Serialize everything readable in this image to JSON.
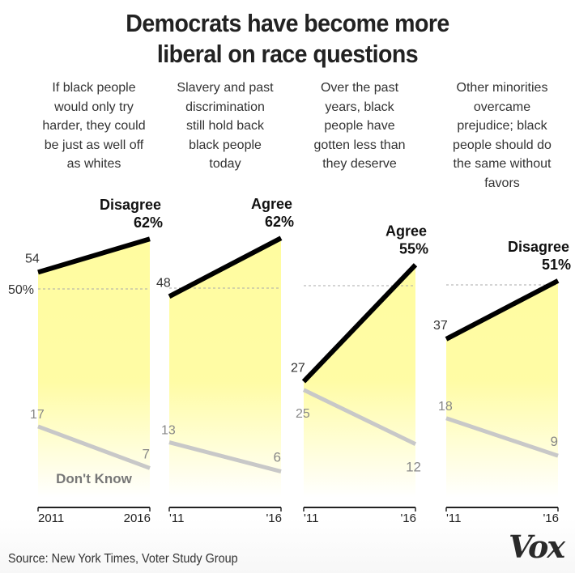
{
  "title_lines": [
    "Democrats have become more",
    "liberal on race questions"
  ],
  "source": "Source: New York Times, Voter Study Group",
  "logo": "Vox",
  "colors": {
    "main_line": "#000000",
    "dont_know_line": "#c8c8c8",
    "fill": "#fffca0",
    "reference_line": "#aaaaaa",
    "dont_know_text": "#777777"
  },
  "chart_data": {
    "type": "line",
    "title": "Democrats have become more liberal on race questions",
    "x": [
      2011,
      2016
    ],
    "ylim": [
      0,
      70
    ],
    "reference_line": {
      "value": 50,
      "label": "50%"
    },
    "dont_know_label": "Don't Know",
    "panels": [
      {
        "question": [
          "If black people",
          "would only try",
          "harder, they could",
          "be just as well off",
          "as whites"
        ],
        "main_series": {
          "name": "Disagree",
          "values": [
            54,
            62
          ],
          "start_label": "54",
          "end_label": "62%"
        },
        "dont_know": {
          "values": [
            17,
            7
          ],
          "start_label": "17",
          "end_label": "7"
        },
        "x_tick_labels": [
          "2011",
          "2016"
        ]
      },
      {
        "question": [
          "Slavery and past",
          "discrimination",
          "still hold back",
          "black people",
          "today"
        ],
        "main_series": {
          "name": "Agree",
          "values": [
            48,
            62
          ],
          "start_label": "48",
          "end_label": "62%"
        },
        "dont_know": {
          "values": [
            13,
            6
          ],
          "start_label": "13",
          "end_label": "6"
        },
        "x_tick_labels": [
          "'11",
          "'16"
        ]
      },
      {
        "question": [
          "Over the past",
          "years, black",
          "people have",
          "gotten less than",
          "they deserve"
        ],
        "main_series": {
          "name": "Agree",
          "values": [
            27,
            55
          ],
          "start_label": "27",
          "end_label": "55%"
        },
        "dont_know": {
          "values": [
            25,
            12
          ],
          "start_label": "25",
          "end_label": "12"
        },
        "x_tick_labels": [
          "'11",
          "'16"
        ]
      },
      {
        "question": [
          "Other minorities",
          "overcame",
          "prejudice; black",
          "people should do",
          "the same without",
          "favors"
        ],
        "main_series": {
          "name": "Disagree",
          "values": [
            37,
            51
          ],
          "start_label": "37",
          "end_label": "51%"
        },
        "dont_know": {
          "values": [
            18,
            9
          ],
          "start_label": "18",
          "end_label": "9"
        },
        "x_tick_labels": [
          "'11",
          "'16"
        ]
      }
    ]
  }
}
